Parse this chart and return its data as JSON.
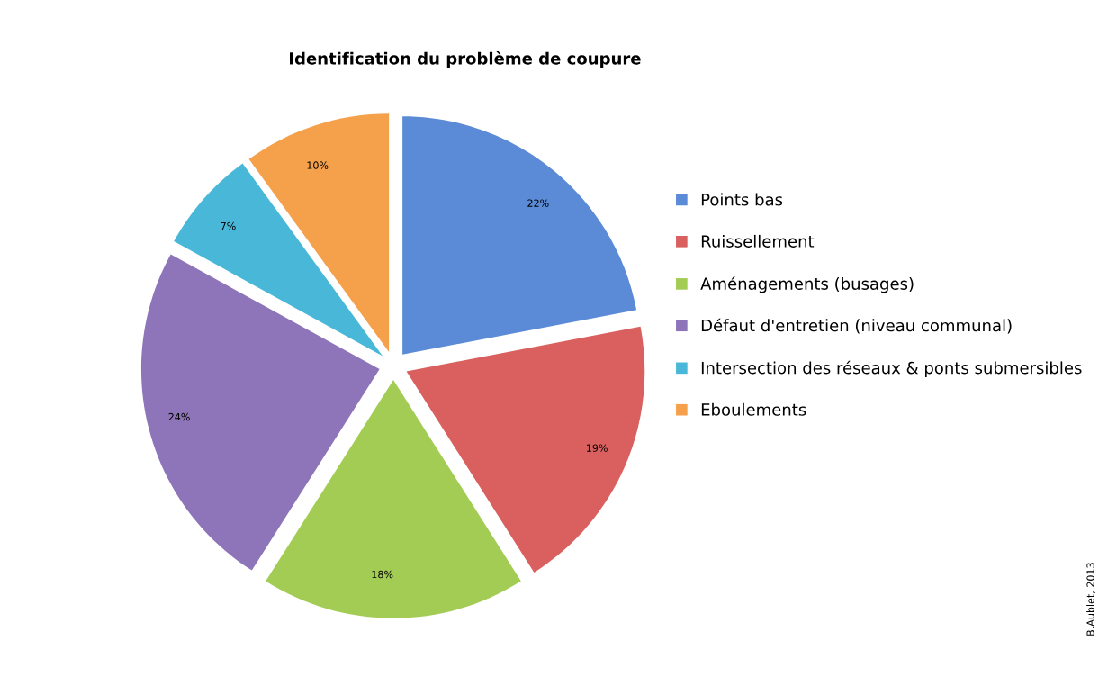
{
  "chart_data": {
    "type": "pie",
    "title": "Identification du problème de coupure",
    "categories": [
      "Points bas",
      "Ruissellement",
      "Aménagements (busages)",
      "Défaut d'entretien (niveau communal)",
      "Intersection des réseaux & ponts submersibles",
      "Eboulements"
    ],
    "values": [
      22,
      19,
      18,
      24,
      7,
      10
    ],
    "colors": [
      "#5b8bd6",
      "#d9605e",
      "#a3cc55",
      "#8e74b8",
      "#49b8d8",
      "#f5a04a"
    ],
    "value_labels": [
      "22%",
      "19%",
      "18%",
      "24%",
      "7%",
      "10%"
    ],
    "legend": "right",
    "annotations": [
      "B.Aublet, 2013"
    ]
  }
}
